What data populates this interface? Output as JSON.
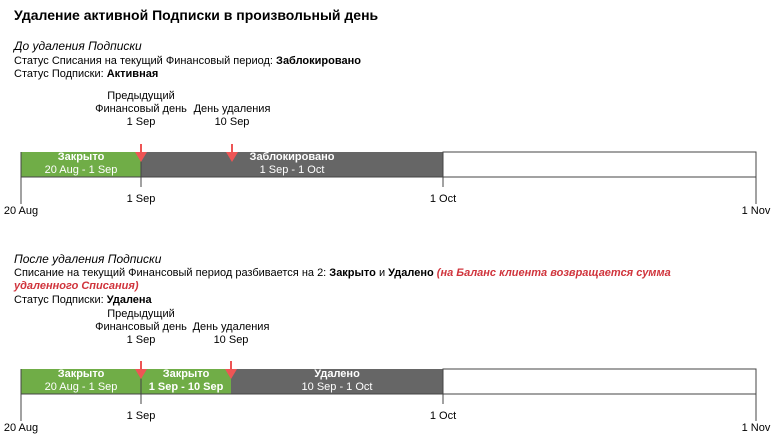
{
  "title": "Удаление активной Подписки в произвольный день",
  "sections": [
    {
      "heading": "До удаления Подписки",
      "lines": [
        [
          {
            "text": "Статус Списания на текущий Финансовый период: ",
            "style": "normal"
          },
          {
            "text": "Заблокировано",
            "style": "bold"
          }
        ],
        [
          {
            "text": "Статус Подписки: ",
            "style": "normal"
          },
          {
            "text": "Активная",
            "style": "bold"
          }
        ]
      ],
      "markers": [
        {
          "lines": [
            "Предыдущий",
            "Финансовый день",
            "1 Sep"
          ]
        },
        {
          "lines": [
            "День удаления",
            "10 Sep"
          ]
        }
      ],
      "segments": [
        {
          "label": "Закрыто",
          "dates": "20 Aug - 1 Sep",
          "color": "#70ad47",
          "dates_style": "normal"
        },
        {
          "label": "Заблокировано",
          "dates": "1 Sep - 1 Oct",
          "color": "#666666",
          "dates_style": "normal"
        }
      ],
      "axis": [
        "1 Sep",
        "1 Oct",
        "20 Aug",
        "1 Nov"
      ]
    },
    {
      "heading": "После удаления Подписки",
      "lines": [
        [
          {
            "text": "Списание на текущий Финансовый период разбивается на 2: ",
            "style": "normal"
          },
          {
            "text": "Закрыто",
            "style": "bold"
          },
          {
            "text": " и ",
            "style": "normal"
          },
          {
            "text": "Удалено",
            "style": "bold"
          },
          {
            "text": " ",
            "style": "normal"
          },
          {
            "text": "(на Баланс клиента возвращается сумма удаленного Списания)",
            "style": "accent"
          }
        ],
        [
          {
            "text": "Статус Подписки: ",
            "style": "normal"
          },
          {
            "text": "Удалена",
            "style": "bold"
          }
        ]
      ],
      "markers": [
        {
          "lines": [
            "Предыдущий",
            "Финансовый день",
            "1 Sep"
          ]
        },
        {
          "lines": [
            "День удаления",
            "10 Sep"
          ]
        }
      ],
      "segments": [
        {
          "label": "Закрыто",
          "dates": "20 Aug - 1 Sep",
          "color": "#70ad47",
          "dates_style": "normal"
        },
        {
          "label": "Закрыто",
          "dates": "1 Sep - 10 Sep",
          "color": "#70ad47",
          "dates_style": "bold"
        },
        {
          "label": "Удалено",
          "dates": "10 Sep - 1 Oct",
          "color": "#666666",
          "dates_style": "normal"
        }
      ],
      "axis": [
        "1 Sep",
        "1 Oct",
        "20 Aug",
        "1 Nov"
      ]
    }
  ]
}
